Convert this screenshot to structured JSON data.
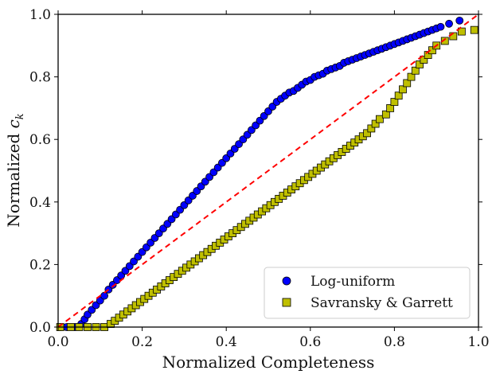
{
  "chart_data": {
    "type": "scatter",
    "title": "",
    "xlabel": "Normalized Completeness",
    "ylabel_main": "Normalized ",
    "ylabel_symbol": "c",
    "ylabel_subscript": "k",
    "xlim": [
      0.0,
      1.0
    ],
    "ylim": [
      0.0,
      1.0
    ],
    "xticks": [
      "0.0",
      "0.2",
      "0.4",
      "0.6",
      "0.8",
      "1.0"
    ],
    "yticks": [
      "0.0",
      "0.2",
      "0.4",
      "0.6",
      "0.8",
      "1.0"
    ],
    "grid": false,
    "legend_position": "lower-right",
    "reference_line": {
      "name": "y = x",
      "color": "#ff0000",
      "style": "dashed",
      "from": [
        0,
        0
      ],
      "to": [
        1,
        1
      ]
    },
    "series": [
      {
        "name": "Log-uniform",
        "marker": "circle",
        "color": "#0000ff",
        "points": [
          [
            0.005,
            0.0
          ],
          [
            0.02,
            0.0
          ],
          [
            0.04,
            0.0
          ],
          [
            0.055,
            0.01
          ],
          [
            0.063,
            0.025
          ],
          [
            0.07,
            0.04
          ],
          [
            0.08,
            0.055
          ],
          [
            0.09,
            0.07
          ],
          [
            0.1,
            0.085
          ],
          [
            0.11,
            0.1
          ],
          [
            0.12,
            0.12
          ],
          [
            0.13,
            0.135
          ],
          [
            0.14,
            0.15
          ],
          [
            0.15,
            0.165
          ],
          [
            0.16,
            0.18
          ],
          [
            0.17,
            0.195
          ],
          [
            0.18,
            0.21
          ],
          [
            0.19,
            0.225
          ],
          [
            0.2,
            0.24
          ],
          [
            0.21,
            0.255
          ],
          [
            0.22,
            0.27
          ],
          [
            0.23,
            0.285
          ],
          [
            0.24,
            0.3
          ],
          [
            0.25,
            0.315
          ],
          [
            0.26,
            0.33
          ],
          [
            0.27,
            0.345
          ],
          [
            0.28,
            0.36
          ],
          [
            0.29,
            0.375
          ],
          [
            0.3,
            0.39
          ],
          [
            0.31,
            0.405
          ],
          [
            0.32,
            0.42
          ],
          [
            0.33,
            0.435
          ],
          [
            0.34,
            0.45
          ],
          [
            0.35,
            0.465
          ],
          [
            0.36,
            0.48
          ],
          [
            0.37,
            0.495
          ],
          [
            0.38,
            0.51
          ],
          [
            0.39,
            0.525
          ],
          [
            0.4,
            0.54
          ],
          [
            0.41,
            0.555
          ],
          [
            0.42,
            0.57
          ],
          [
            0.43,
            0.585
          ],
          [
            0.44,
            0.6
          ],
          [
            0.45,
            0.615
          ],
          [
            0.46,
            0.63
          ],
          [
            0.47,
            0.645
          ],
          [
            0.48,
            0.66
          ],
          [
            0.49,
            0.675
          ],
          [
            0.5,
            0.69
          ],
          [
            0.51,
            0.705
          ],
          [
            0.52,
            0.72
          ],
          [
            0.53,
            0.73
          ],
          [
            0.54,
            0.74
          ],
          [
            0.55,
            0.75
          ],
          [
            0.56,
            0.755
          ],
          [
            0.57,
            0.765
          ],
          [
            0.58,
            0.775
          ],
          [
            0.59,
            0.785
          ],
          [
            0.6,
            0.79
          ],
          [
            0.61,
            0.8
          ],
          [
            0.62,
            0.805
          ],
          [
            0.63,
            0.81
          ],
          [
            0.64,
            0.82
          ],
          [
            0.65,
            0.825
          ],
          [
            0.66,
            0.83
          ],
          [
            0.67,
            0.835
          ],
          [
            0.68,
            0.845
          ],
          [
            0.69,
            0.85
          ],
          [
            0.7,
            0.855
          ],
          [
            0.71,
            0.86
          ],
          [
            0.72,
            0.865
          ],
          [
            0.73,
            0.87
          ],
          [
            0.74,
            0.875
          ],
          [
            0.75,
            0.88
          ],
          [
            0.76,
            0.885
          ],
          [
            0.77,
            0.89
          ],
          [
            0.78,
            0.895
          ],
          [
            0.79,
            0.9
          ],
          [
            0.8,
            0.905
          ],
          [
            0.81,
            0.91
          ],
          [
            0.82,
            0.915
          ],
          [
            0.83,
            0.92
          ],
          [
            0.84,
            0.925
          ],
          [
            0.85,
            0.93
          ],
          [
            0.86,
            0.935
          ],
          [
            0.87,
            0.94
          ],
          [
            0.88,
            0.945
          ],
          [
            0.89,
            0.95
          ],
          [
            0.9,
            0.955
          ],
          [
            0.91,
            0.96
          ],
          [
            0.93,
            0.97
          ],
          [
            0.955,
            0.98
          ]
        ]
      },
      {
        "name": "Savransky & Garrett",
        "marker": "square",
        "color": "#bfbf00",
        "points": [
          [
            0.005,
            0.0
          ],
          [
            0.03,
            0.0
          ],
          [
            0.05,
            0.0
          ],
          [
            0.07,
            0.0
          ],
          [
            0.09,
            0.0
          ],
          [
            0.11,
            0.0
          ],
          [
            0.125,
            0.01
          ],
          [
            0.135,
            0.02
          ],
          [
            0.145,
            0.03
          ],
          [
            0.155,
            0.04
          ],
          [
            0.165,
            0.05
          ],
          [
            0.175,
            0.06
          ],
          [
            0.185,
            0.07
          ],
          [
            0.195,
            0.08
          ],
          [
            0.205,
            0.09
          ],
          [
            0.215,
            0.1
          ],
          [
            0.225,
            0.11
          ],
          [
            0.235,
            0.12
          ],
          [
            0.245,
            0.13
          ],
          [
            0.255,
            0.14
          ],
          [
            0.265,
            0.15
          ],
          [
            0.275,
            0.16
          ],
          [
            0.285,
            0.17
          ],
          [
            0.295,
            0.18
          ],
          [
            0.305,
            0.19
          ],
          [
            0.315,
            0.2
          ],
          [
            0.325,
            0.21
          ],
          [
            0.335,
            0.22
          ],
          [
            0.345,
            0.23
          ],
          [
            0.355,
            0.24
          ],
          [
            0.365,
            0.25
          ],
          [
            0.375,
            0.26
          ],
          [
            0.385,
            0.27
          ],
          [
            0.395,
            0.28
          ],
          [
            0.405,
            0.29
          ],
          [
            0.415,
            0.3
          ],
          [
            0.425,
            0.31
          ],
          [
            0.435,
            0.32
          ],
          [
            0.445,
            0.33
          ],
          [
            0.455,
            0.34
          ],
          [
            0.465,
            0.35
          ],
          [
            0.475,
            0.36
          ],
          [
            0.485,
            0.37
          ],
          [
            0.495,
            0.38
          ],
          [
            0.505,
            0.39
          ],
          [
            0.515,
            0.4
          ],
          [
            0.525,
            0.41
          ],
          [
            0.535,
            0.42
          ],
          [
            0.545,
            0.43
          ],
          [
            0.555,
            0.44
          ],
          [
            0.565,
            0.45
          ],
          [
            0.575,
            0.46
          ],
          [
            0.585,
            0.47
          ],
          [
            0.595,
            0.48
          ],
          [
            0.605,
            0.49
          ],
          [
            0.615,
            0.5
          ],
          [
            0.625,
            0.51
          ],
          [
            0.635,
            0.52
          ],
          [
            0.645,
            0.53
          ],
          [
            0.655,
            0.54
          ],
          [
            0.665,
            0.55
          ],
          [
            0.675,
            0.56
          ],
          [
            0.685,
            0.57
          ],
          [
            0.695,
            0.58
          ],
          [
            0.705,
            0.59
          ],
          [
            0.715,
            0.6
          ],
          [
            0.725,
            0.61
          ],
          [
            0.735,
            0.62
          ],
          [
            0.745,
            0.635
          ],
          [
            0.755,
            0.65
          ],
          [
            0.765,
            0.665
          ],
          [
            0.78,
            0.68
          ],
          [
            0.79,
            0.7
          ],
          [
            0.8,
            0.72
          ],
          [
            0.81,
            0.74
          ],
          [
            0.82,
            0.76
          ],
          [
            0.83,
            0.78
          ],
          [
            0.84,
            0.8
          ],
          [
            0.85,
            0.82
          ],
          [
            0.86,
            0.84
          ],
          [
            0.87,
            0.855
          ],
          [
            0.88,
            0.87
          ],
          [
            0.89,
            0.885
          ],
          [
            0.9,
            0.9
          ],
          [
            0.92,
            0.915
          ],
          [
            0.94,
            0.93
          ],
          [
            0.96,
            0.945
          ],
          [
            0.99,
            0.95
          ]
        ]
      }
    ]
  }
}
